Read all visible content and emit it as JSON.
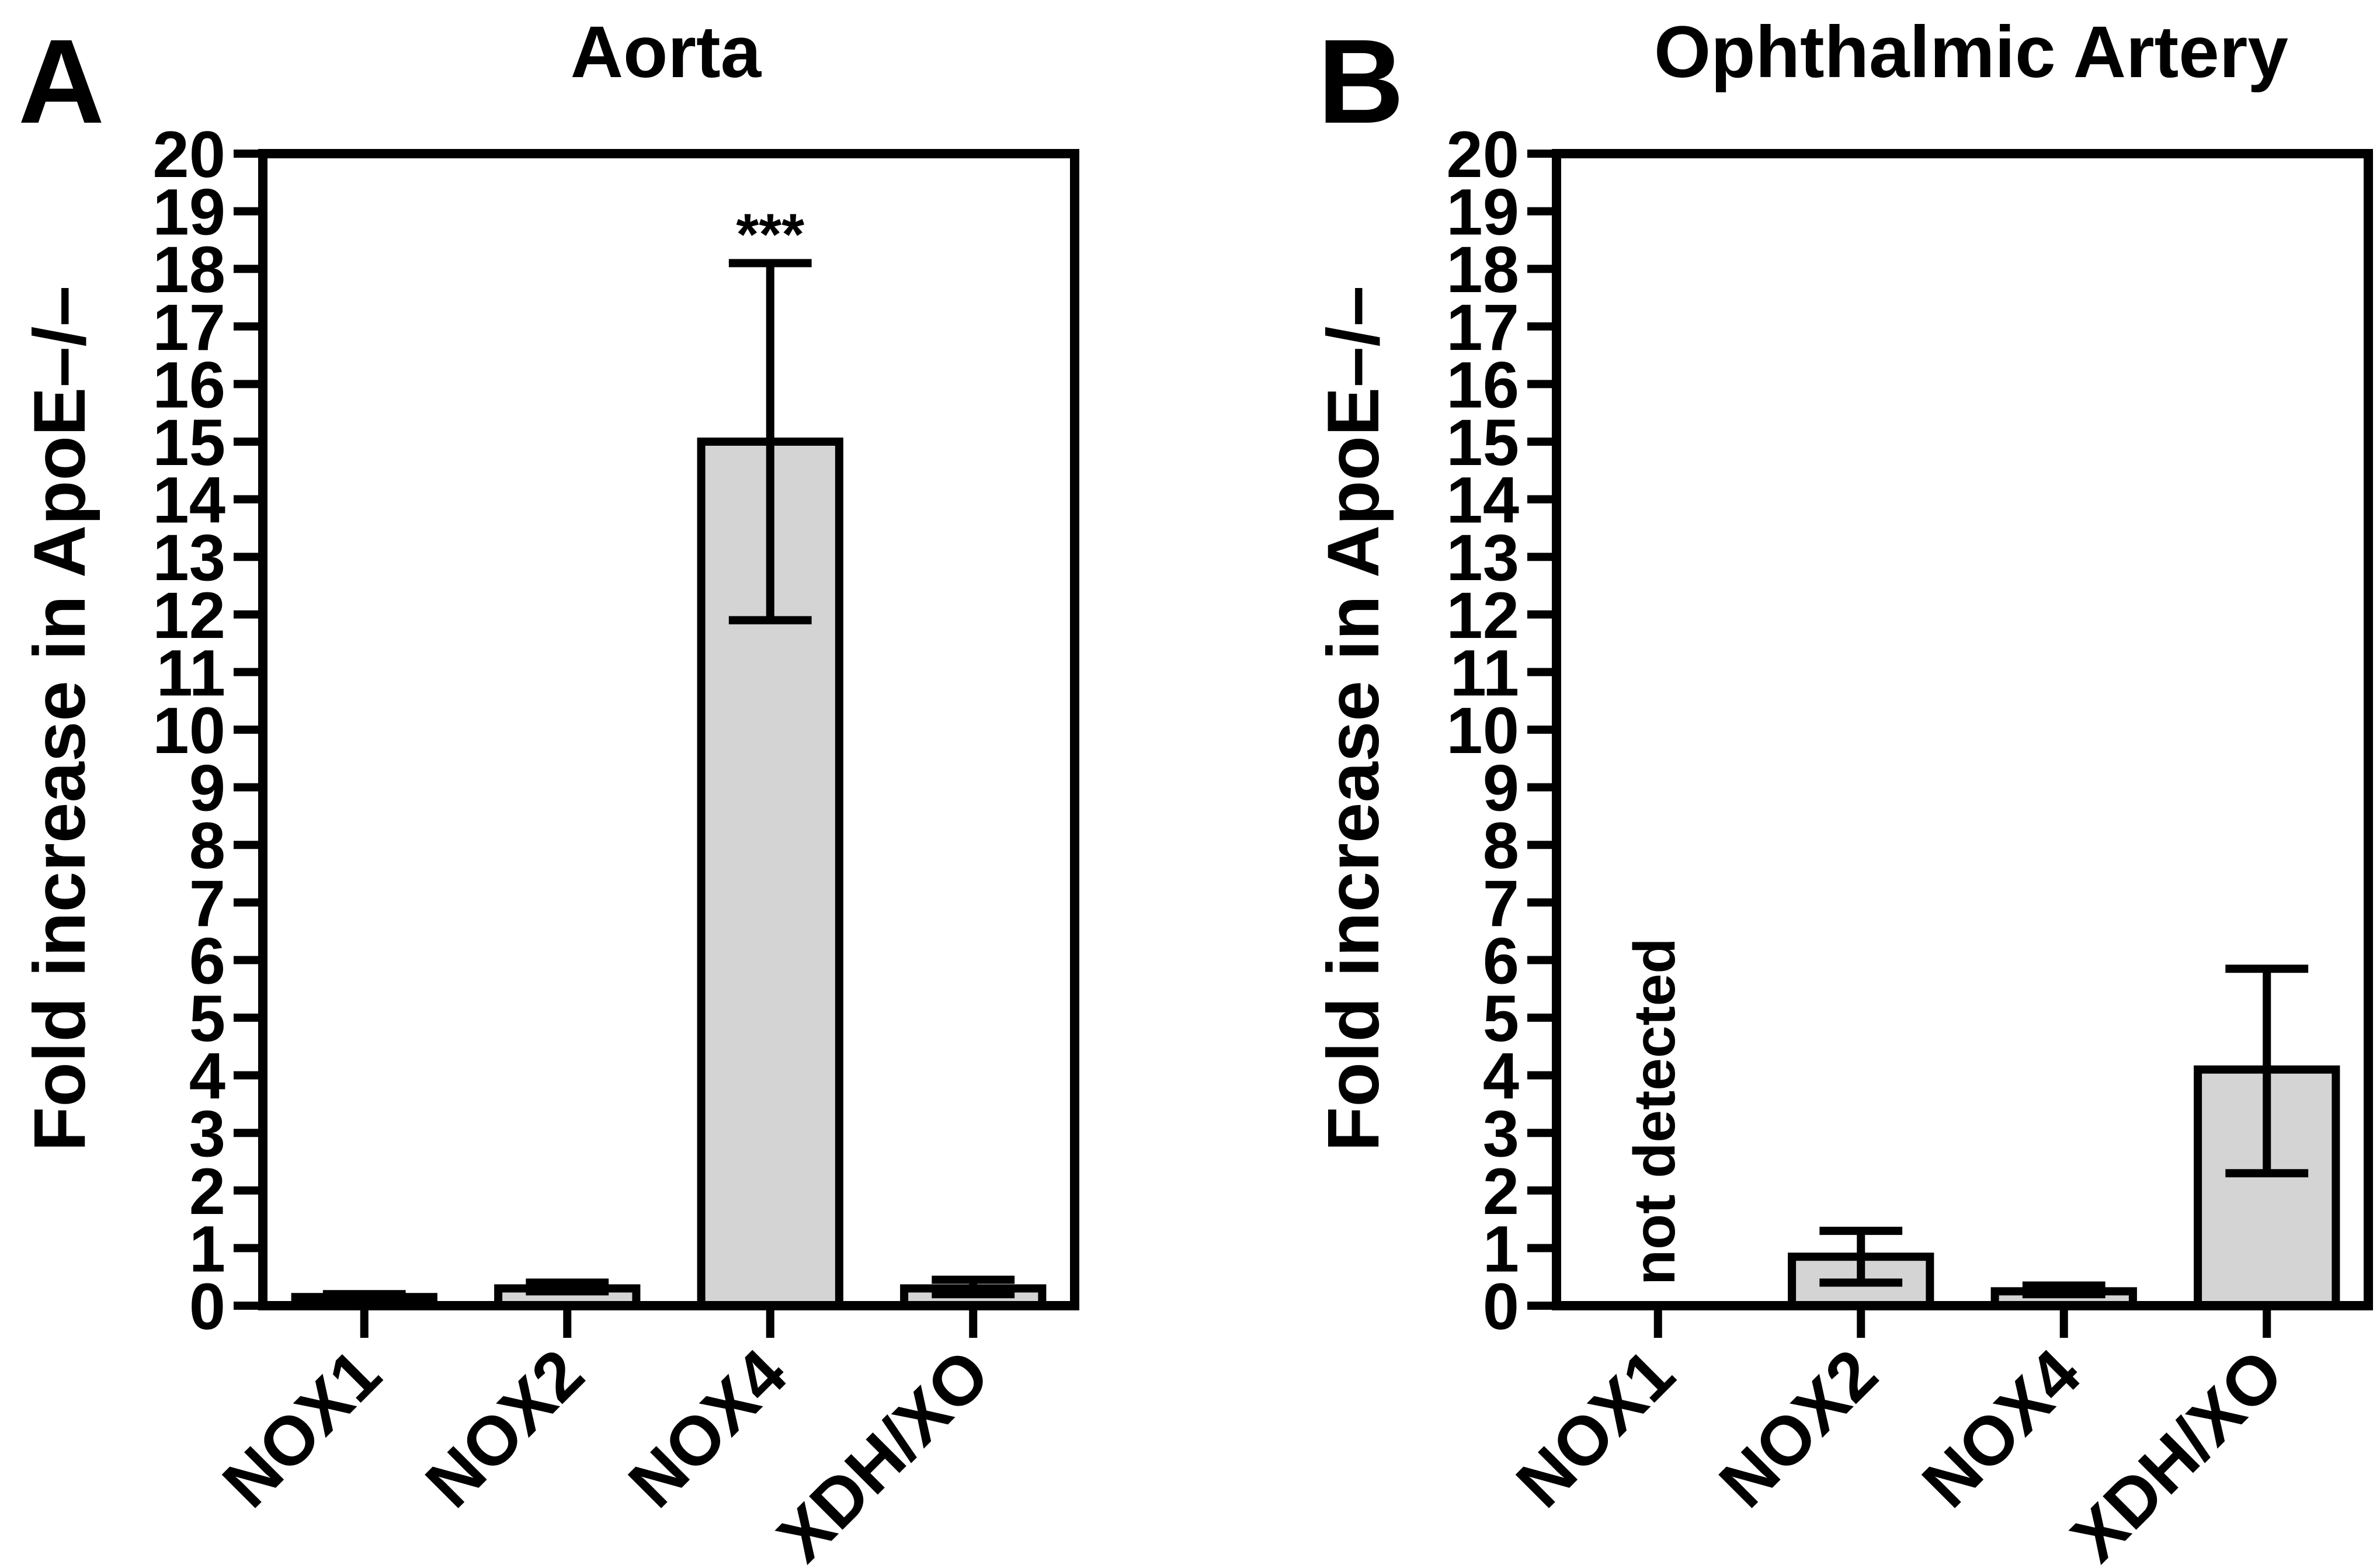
{
  "colors": {
    "bar_fill": "#d4d4d4",
    "stroke": "#000000",
    "background": "#ffffff"
  },
  "chart_data": [
    {
      "type": "bar",
      "panel_letter": "A",
      "title": "Aorta",
      "xlabel": "",
      "ylabel": "Fold increase in ApoE–/–",
      "ylim": [
        0,
        20
      ],
      "yticks": [
        "0",
        "1",
        "2",
        "3",
        "4",
        "5",
        "6",
        "7",
        "8",
        "9",
        "10",
        "11",
        "12",
        "13",
        "14",
        "15",
        "16",
        "17",
        "18",
        "19",
        "20"
      ],
      "categories": [
        "NOX1",
        "NOX2",
        "NOX4",
        "XDH/XO"
      ],
      "values": [
        0.15,
        0.3,
        15.0,
        0.3
      ],
      "err_low": [
        0.12,
        0.25,
        11.9,
        0.2
      ],
      "err_high": [
        0.2,
        0.4,
        18.1,
        0.45
      ],
      "annotations": [
        "",
        "",
        "***",
        ""
      ]
    },
    {
      "type": "bar",
      "panel_letter": "B",
      "title": "Ophthalmic Artery",
      "xlabel": "",
      "ylabel": "Fold increase in ApoE–/–",
      "ylim": [
        0,
        20
      ],
      "yticks": [
        "0",
        "1",
        "2",
        "3",
        "4",
        "5",
        "6",
        "7",
        "8",
        "9",
        "10",
        "11",
        "12",
        "13",
        "14",
        "15",
        "16",
        "17",
        "18",
        "19",
        "20"
      ],
      "categories": [
        "NOX1",
        "NOX2",
        "NOX4",
        "XDH/XO"
      ],
      "values": [
        null,
        0.85,
        0.25,
        4.1
      ],
      "err_low": [
        null,
        0.4,
        0.2,
        2.3
      ],
      "err_high": [
        null,
        1.3,
        0.35,
        5.85
      ],
      "annotations": [
        "not detected",
        "",
        "",
        ""
      ]
    }
  ]
}
